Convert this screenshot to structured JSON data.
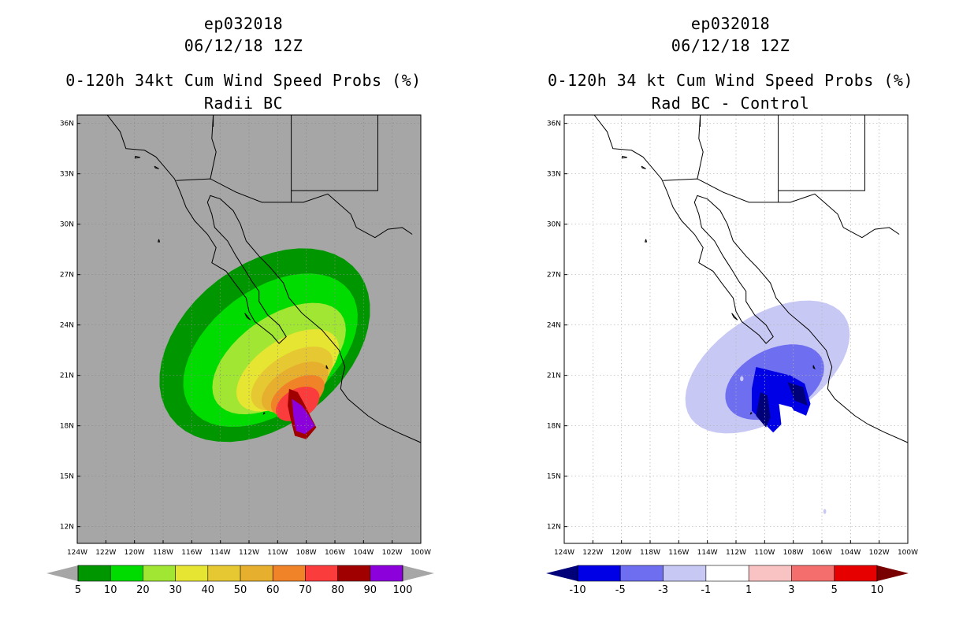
{
  "left": {
    "storm_id": "ep032018",
    "datetime": "06/12/18 12Z",
    "product": "0-120h 34kt Cum Wind Speed Probs (%)",
    "subtitle": "Radii BC",
    "lat_labels": [
      "36N",
      "33N",
      "30N",
      "27N",
      "24N",
      "21N",
      "18N",
      "15N",
      "12N"
    ],
    "lon_labels": [
      "124W",
      "122W",
      "120W",
      "118W",
      "116W",
      "114W",
      "112W",
      "110W",
      "108W",
      "106W",
      "104W",
      "102W",
      "100W"
    ],
    "colorbar": {
      "labels": [
        "5",
        "10",
        "20",
        "30",
        "40",
        "50",
        "60",
        "70",
        "80",
        "90",
        "100"
      ],
      "colors": [
        "#009600",
        "#00dc00",
        "#a0e632",
        "#e6e632",
        "#e6c832",
        "#e6af2d",
        "#f08228",
        "#fa3c3c",
        "#a00000",
        "#8c00dc"
      ],
      "under_color": "#a6a6a6",
      "over_color": "#a6a6a6"
    },
    "background_color": "#a6a6a6"
  },
  "right": {
    "storm_id": "ep032018",
    "datetime": "06/12/18 12Z",
    "product": "0-120h 34 kt Cum Wind Speed Probs (%)",
    "subtitle": "Rad BC - Control",
    "lat_labels": [
      "36N",
      "33N",
      "30N",
      "27N",
      "24N",
      "21N",
      "18N",
      "15N",
      "12N"
    ],
    "lon_labels": [
      "124W",
      "122W",
      "120W",
      "118W",
      "116W",
      "114W",
      "112W",
      "110W",
      "108W",
      "106W",
      "104W",
      "102W",
      "100W"
    ],
    "colorbar": {
      "labels": [
        "-10",
        "-5",
        "-3",
        "-1",
        "1",
        "3",
        "5",
        "10"
      ],
      "colors": [
        "#0000e6",
        "#6e6ef0",
        "#c8c8f5",
        "#ffffff",
        "#fac3c3",
        "#f56e6e",
        "#e60000"
      ],
      "under_color": "#000078",
      "over_color": "#780000"
    },
    "background_color": "#ffffff"
  }
}
